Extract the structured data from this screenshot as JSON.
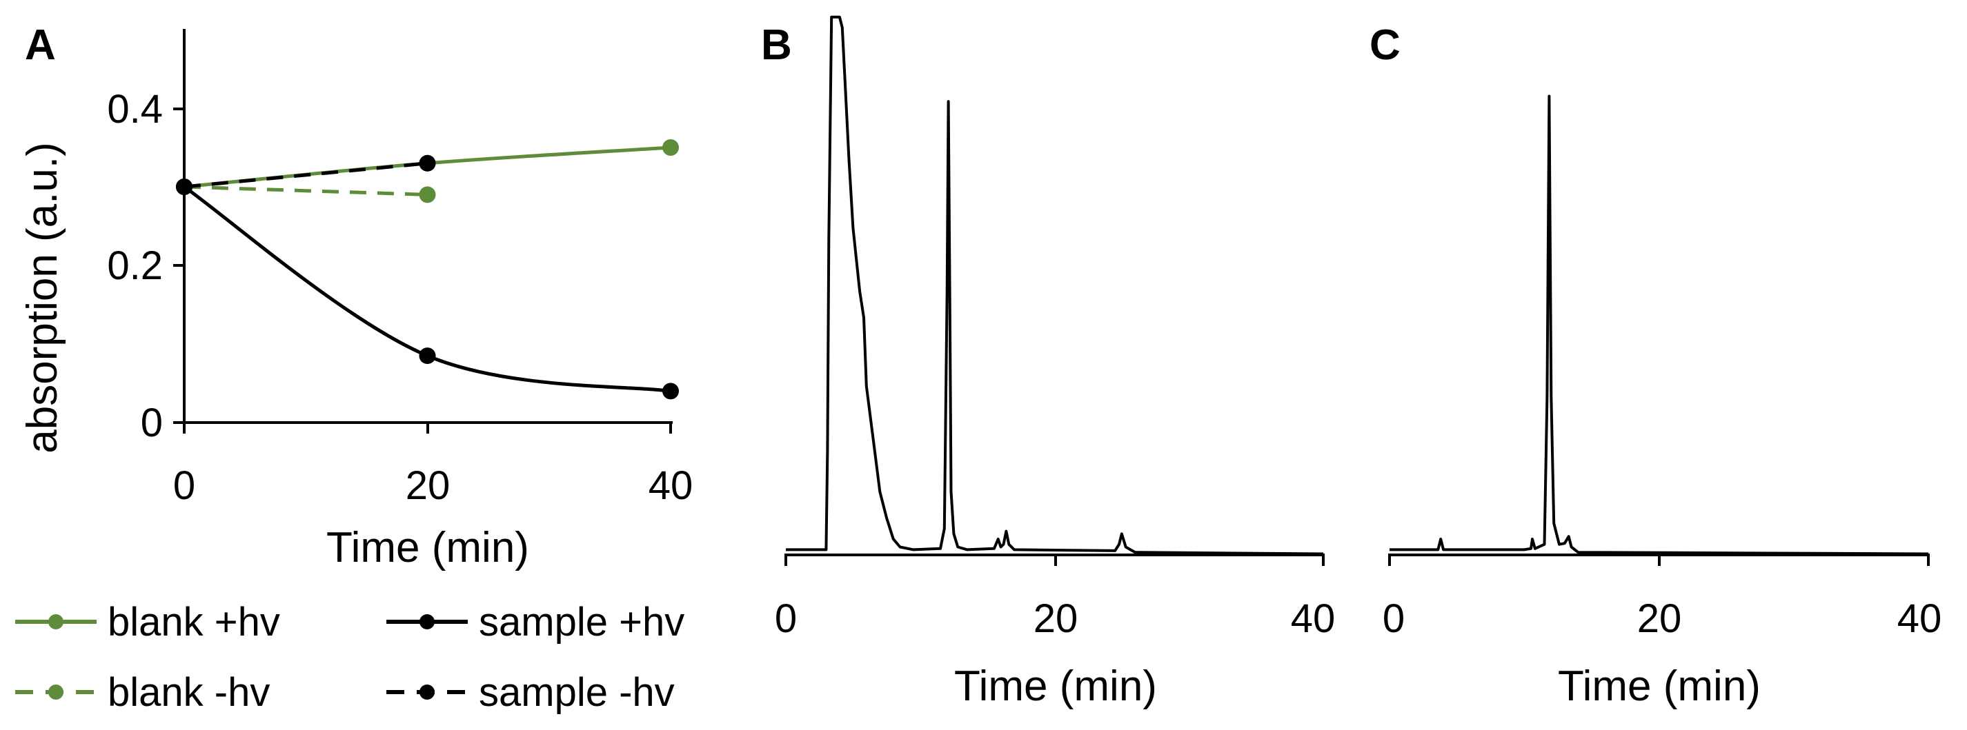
{
  "colors": {
    "blank": "#5e8c3a",
    "sample": "#000000"
  },
  "chart_data": [
    {
      "panel": "A",
      "type": "line",
      "xlabel": "Time (min)",
      "ylabel": "absorption (a.u.)",
      "xlim": [
        0,
        40
      ],
      "ylim": [
        0,
        0.5
      ],
      "xticks": [
        "0",
        "20",
        "40"
      ],
      "yticks": [
        "0",
        "0.2",
        "0.4"
      ],
      "grid": false,
      "legend_position": "bottom",
      "series": [
        {
          "name": "blank +hv",
          "color": "#5e8c3a",
          "dash": "solid",
          "x": [
            0,
            20,
            40
          ],
          "y": [
            0.3,
            0.33,
            0.35
          ]
        },
        {
          "name": "sample +hv",
          "color": "#000000",
          "dash": "solid",
          "x": [
            0,
            20,
            40
          ],
          "y": [
            0.3,
            0.085,
            0.04
          ]
        },
        {
          "name": "blank -hv",
          "color": "#5e8c3a",
          "dash": "dashed",
          "x": [
            0,
            20
          ],
          "y": [
            0.3,
            0.29
          ]
        },
        {
          "name": "sample -hv",
          "color": "#000000",
          "dash": "dashed",
          "x": [
            0,
            20
          ],
          "y": [
            0.3,
            0.33
          ]
        }
      ]
    },
    {
      "panel": "B",
      "type": "line",
      "xlabel": "Time (min)",
      "ylabel": "",
      "xlim": [
        0,
        40
      ],
      "xticks": [
        "0",
        "20",
        "40"
      ],
      "grid": false,
      "series": [
        {
          "x": [
            0,
            3.0,
            3.1,
            3.2,
            3.4,
            4.0,
            4.2,
            4.4,
            4.7,
            5.0,
            5.5,
            5.8,
            6.0,
            6.5,
            7.0,
            7.5,
            8.0,
            8.5,
            9.5,
            11.5,
            11.8,
            12.0,
            12.1,
            12.2,
            12.3,
            12.5,
            12.8,
            13.5,
            15.5,
            15.8,
            16.0,
            16.2,
            16.4,
            16.6,
            17.0,
            24.5,
            24.8,
            25.0,
            25.3,
            26.0,
            40
          ],
          "y": [
            0.01,
            0.01,
            0.2,
            0.6,
            1.02,
            1.02,
            1.0,
            0.9,
            0.75,
            0.62,
            0.5,
            0.45,
            0.32,
            0.22,
            0.12,
            0.07,
            0.03,
            0.015,
            0.01,
            0.012,
            0.05,
            0.5,
            0.86,
            0.5,
            0.12,
            0.04,
            0.015,
            0.01,
            0.012,
            0.03,
            0.015,
            0.02,
            0.045,
            0.02,
            0.01,
            0.008,
            0.02,
            0.04,
            0.015,
            0.005,
            0.002
          ]
        }
      ]
    },
    {
      "panel": "C",
      "type": "line",
      "xlabel": "Time (min)",
      "ylabel": "",
      "xlim": [
        0,
        40
      ],
      "xticks": [
        "0",
        "20",
        "40"
      ],
      "grid": false,
      "series": [
        {
          "x": [
            0,
            3.6,
            3.8,
            4.0,
            10.0,
            10.5,
            10.6,
            10.8,
            11.5,
            11.7,
            11.85,
            12.0,
            12.2,
            12.6,
            13.0,
            13.3,
            13.5,
            14.0,
            40
          ],
          "y": [
            0.01,
            0.01,
            0.03,
            0.01,
            0.01,
            0.012,
            0.03,
            0.012,
            0.02,
            0.3,
            0.87,
            0.3,
            0.06,
            0.02,
            0.022,
            0.035,
            0.015,
            0.005,
            0.002
          ]
        }
      ]
    }
  ]
}
